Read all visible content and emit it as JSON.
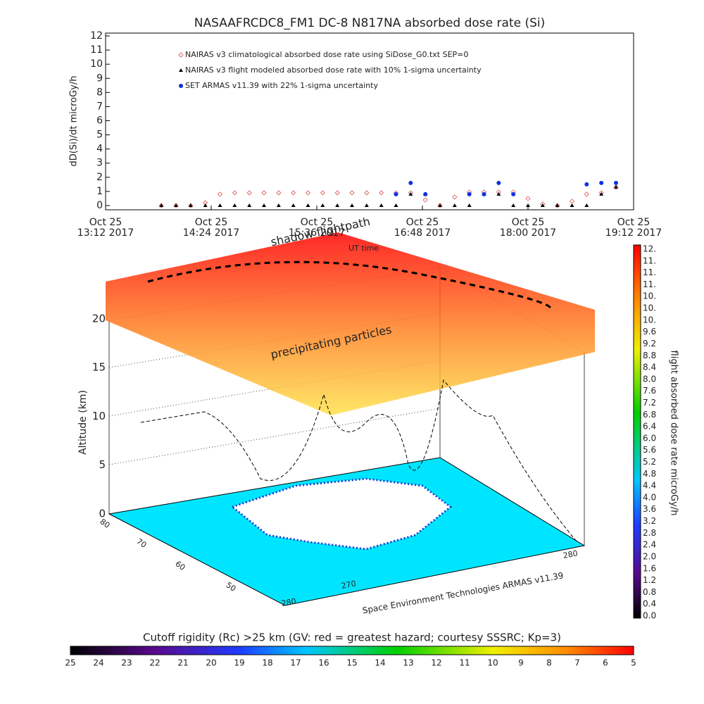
{
  "chart_data": {
    "type": "scatter",
    "title": "NASAAFRCDC8_FM1 DC-8    N817NA absorbed dose rate (Si)",
    "ylabel": "dD(Si)/dt microGy/h",
    "xlim": [
      "2017-10-25T13:12",
      "2017-10-25T19:12"
    ],
    "xticks": [
      {
        "value": "2017-10-25T13:12",
        "label": [
          "Oct 25",
          "13:12 2017"
        ]
      },
      {
        "value": "2017-10-25T14:24",
        "label": [
          "Oct 25",
          "14:24 2017"
        ]
      },
      {
        "value": "2017-10-25T15:36",
        "label": [
          "Oct 25",
          "15:36 2017"
        ]
      },
      {
        "value": "2017-10-25T16:48",
        "label": [
          "Oct 25",
          "16:48 2017"
        ]
      },
      {
        "value": "2017-10-25T18:00",
        "label": [
          "Oct 25",
          "18:00 2017"
        ]
      },
      {
        "value": "2017-10-25T19:12",
        "label": [
          "Oct 25",
          "19:12 2017"
        ]
      }
    ],
    "ylim": [
      -0.3,
      12.2
    ],
    "yticks": [
      0,
      1,
      2,
      3,
      4,
      5,
      6,
      7,
      8,
      9,
      10,
      11,
      12
    ],
    "x": [
      "2017-10-25T13:50",
      "2017-10-25T14:00",
      "2017-10-25T14:10",
      "2017-10-25T14:20",
      "2017-10-25T14:30",
      "2017-10-25T14:40",
      "2017-10-25T14:50",
      "2017-10-25T15:00",
      "2017-10-25T15:10",
      "2017-10-25T15:20",
      "2017-10-25T15:30",
      "2017-10-25T15:40",
      "2017-10-25T15:50",
      "2017-10-25T16:00",
      "2017-10-25T16:10",
      "2017-10-25T16:20",
      "2017-10-25T16:30",
      "2017-10-25T16:40",
      "2017-10-25T16:50",
      "2017-10-25T17:00",
      "2017-10-25T17:10",
      "2017-10-25T17:20",
      "2017-10-25T17:30",
      "2017-10-25T17:40",
      "2017-10-25T17:50",
      "2017-10-25T18:00",
      "2017-10-25T18:10",
      "2017-10-25T18:20",
      "2017-10-25T18:30",
      "2017-10-25T18:40",
      "2017-10-25T18:50",
      "2017-10-25T19:00"
    ],
    "series": [
      {
        "name": "NAIRAS v3 climatological absorbed dose rate using SiDose_G0.txt SEP=0",
        "color": "#e07070",
        "marker": "diamond",
        "values": [
          0,
          0,
          0,
          0.2,
          0.8,
          0.9,
          0.9,
          0.9,
          0.9,
          0.9,
          0.9,
          0.9,
          0.9,
          0.9,
          0.9,
          0.9,
          0.9,
          0.9,
          0.4,
          0,
          0.6,
          0.95,
          0.95,
          0.95,
          0.95,
          0.5,
          0.1,
          0,
          0.3,
          0.8,
          0.9,
          1.3
        ]
      },
      {
        "name": "NAIRAS v3 flight modeled absorbed dose rate with 10% 1-sigma uncertainty",
        "color": "#000000",
        "marker": "triangle",
        "values": [
          0,
          0,
          0,
          0,
          0,
          0,
          0,
          0,
          0,
          0,
          0,
          0,
          0,
          0,
          0,
          0,
          0,
          0.8,
          0.8,
          0,
          0,
          0,
          0.8,
          0.8,
          0,
          0,
          0,
          0,
          0,
          0,
          0.8,
          1.3
        ]
      },
      {
        "name": "SET ARMAS v11.39 with 22% 1-sigma uncertainty",
        "color": "#1030e0",
        "marker": "circle",
        "values": [
          null,
          null,
          null,
          null,
          null,
          null,
          null,
          null,
          null,
          null,
          null,
          null,
          null,
          null,
          null,
          null,
          0.8,
          1.6,
          0.8,
          null,
          null,
          0.8,
          0.8,
          1.6,
          0.8,
          null,
          null,
          null,
          null,
          1.5,
          1.6,
          1.6
        ]
      }
    ]
  },
  "scene": {
    "labels": {
      "flightpath": "shadow flightpath",
      "time": "UT time",
      "particles": "precipitating particles",
      "altitude": "Altitude (km)",
      "credit": "Space Environment Technologies ARMAS v11.39"
    },
    "altitude_ticks": [
      "0",
      "5",
      "10",
      "15",
      "20"
    ],
    "latitude_ticks": [
      "80",
      "70",
      "60",
      "50"
    ],
    "longitude_ticks": [
      "280",
      "270",
      "280"
    ],
    "dose_colorbar": {
      "title": "flight absorbed dose rate microGy/h",
      "labels": [
        "0.0",
        "0.4",
        "0.8",
        "1.2",
        "1.6",
        "2.0",
        "2.4",
        "2.8",
        "3.2",
        "3.6",
        "4.0",
        "4.4",
        "4.8",
        "5.2",
        "5.6",
        "6.0",
        "6.4",
        "6.8",
        "7.2",
        "7.6",
        "8.0",
        "8.4",
        "8.8",
        "9.2",
        "9.6",
        "10.",
        "10.",
        "10.",
        "11.",
        "11.",
        "11.",
        "12."
      ]
    },
    "rigidity_colorbar": {
      "title": "Cutoff rigidity (Rc) >25 km (GV: red = greatest hazard; courtesy SSSRC; Kp=3)",
      "labels": [
        "25",
        "24",
        "23",
        "22",
        "21",
        "20",
        "19",
        "18",
        "17",
        "16",
        "15",
        "14",
        "13",
        "12",
        "11",
        "10",
        "9",
        "8",
        "7",
        "6",
        "5"
      ]
    }
  }
}
